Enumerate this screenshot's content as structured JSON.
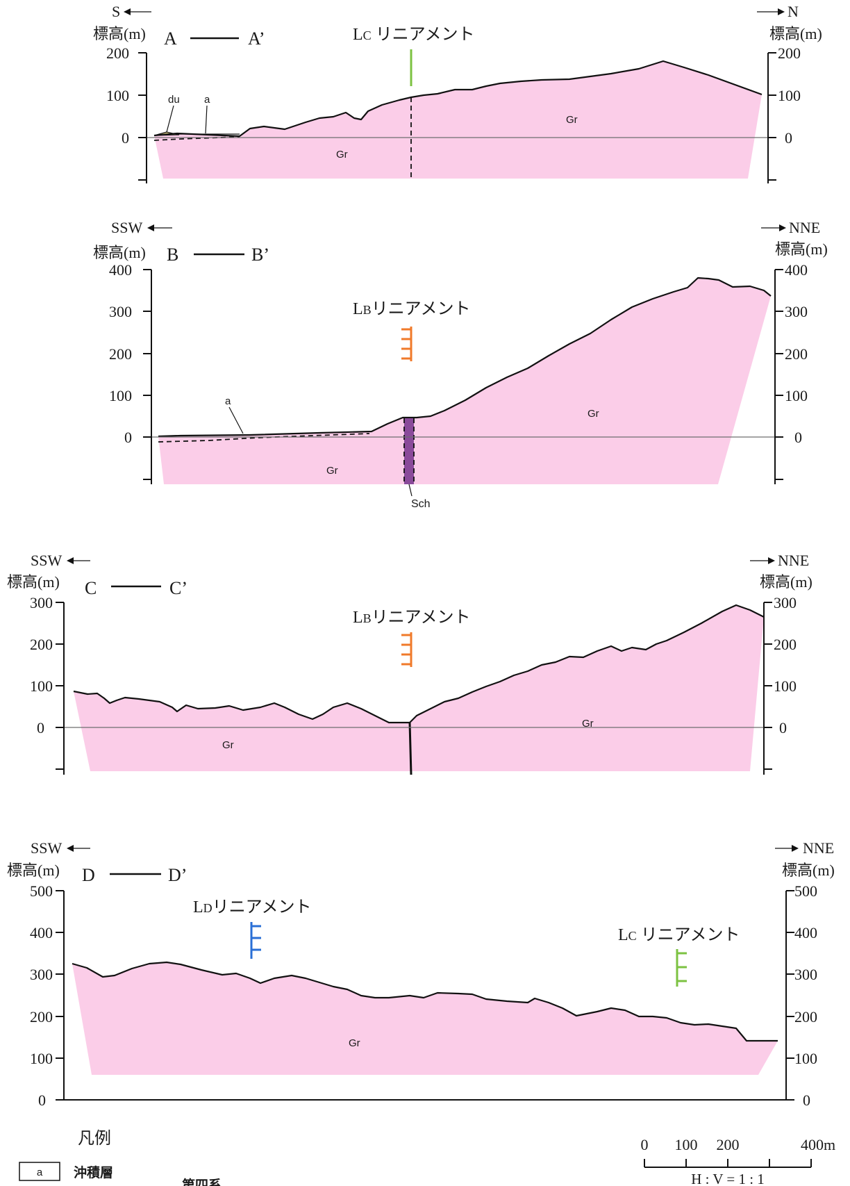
{
  "common": {
    "elevation_label": "標高(m)",
    "rock_label": "Gr"
  },
  "sections": [
    {
      "id": "A",
      "title_left": "A",
      "title_right": "A’",
      "dir_left": "S",
      "dir_right": "N",
      "ticks_left": [
        "200",
        "100",
        "0"
      ],
      "ticks_right": [
        "200",
        "100",
        "0"
      ],
      "lineament": {
        "label_main": "L",
        "label_sub": "C",
        "label_rest": " リニアメント",
        "color": "#7cc242"
      },
      "unit_labels": [
        "du",
        "a"
      ]
    },
    {
      "id": "B",
      "title_left": "B",
      "title_right": "B’",
      "dir_left": "SSW",
      "dir_right": "NNE",
      "ticks_left": [
        "400",
        "300",
        "200",
        "100",
        "0"
      ],
      "ticks_right": [
        "400",
        "300",
        "200",
        "100",
        "0"
      ],
      "lineament": {
        "label_main": "L",
        "label_sub": "B",
        "label_rest": "リニアメント",
        "color": "#f07a2a"
      },
      "unit_labels": [
        "a",
        "Sch"
      ]
    },
    {
      "id": "C",
      "title_left": "C",
      "title_right": "C’",
      "dir_left": "SSW",
      "dir_right": "NNE",
      "ticks_left": [
        "300",
        "200",
        "100",
        "0"
      ],
      "ticks_right": [
        "300",
        "200",
        "100",
        "0"
      ],
      "lineament": {
        "label_main": "L",
        "label_sub": "B",
        "label_rest": "リニアメント",
        "color": "#f07a2a"
      }
    },
    {
      "id": "D",
      "title_left": "D",
      "title_right": "D’",
      "dir_left": "SSW",
      "dir_right": "NNE",
      "ticks_left": [
        "500",
        "400",
        "300",
        "200",
        "100",
        "0"
      ],
      "ticks_right": [
        "500",
        "400",
        "300",
        "200",
        "100",
        "0"
      ],
      "lineament": {
        "label_main": "L",
        "label_sub": "D",
        "label_rest": "リニアメント",
        "color": "#2a6fd6"
      },
      "lineament2": {
        "label_main": "L",
        "label_sub": "C",
        "label_rest": " リニアメント",
        "color": "#7cc242"
      }
    }
  ],
  "legend": {
    "title": "凡例",
    "items": [
      {
        "symbol": "a",
        "label": "沖積層"
      }
    ],
    "group": "第四系"
  },
  "scale": {
    "labels": [
      "0",
      "100",
      "200",
      "400m"
    ],
    "ratio": "H : V = 1 : 1"
  },
  "colors": {
    "granite_fill": "#fbcde8",
    "schist_fill": "#8a4a9a",
    "dune_fill": "#e8d98a"
  }
}
